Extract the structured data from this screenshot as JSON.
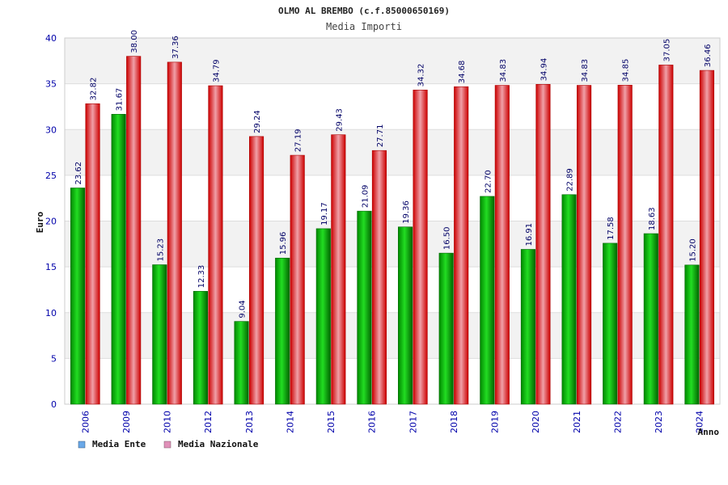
{
  "chart_data": {
    "type": "bar",
    "title": "OLMO AL BREMBO (c.f.85000650169)",
    "subtitle": "Media Importi",
    "ylabel": "Euro",
    "xlabel": "Anno",
    "ylim": [
      0,
      40
    ],
    "yticks": [
      0,
      5,
      10,
      15,
      20,
      25,
      30,
      35,
      40
    ],
    "grid": true,
    "legend_position": "bottom-left",
    "categories": [
      "2006",
      "2009",
      "2010",
      "2012",
      "2013",
      "2014",
      "2015",
      "2016",
      "2017",
      "2018",
      "2019",
      "2020",
      "2021",
      "2022",
      "2023",
      "2024"
    ],
    "series": [
      {
        "name": "Media Ente",
        "color": "#00bb00",
        "legend_color": "#6aa8e8",
        "values": [
          23.62,
          31.67,
          15.23,
          12.33,
          9.04,
          15.96,
          19.17,
          21.09,
          19.36,
          16.5,
          22.7,
          16.91,
          22.89,
          17.58,
          18.63,
          15.2
        ],
        "labels": [
          "23.62",
          "31.67",
          "15.23",
          "12.33",
          "9.04",
          "15.96",
          "19.17",
          "21.09",
          "19.36",
          "16.50",
          "22.70",
          "16.91",
          "22.89",
          "17.58",
          "18.63",
          "15.20"
        ]
      },
      {
        "name": "Media Nazionale",
        "color": "#ee1111",
        "legend_color": "#e090b8",
        "values": [
          32.82,
          38.0,
          37.36,
          34.79,
          29.24,
          27.19,
          29.43,
          27.71,
          34.32,
          34.68,
          34.83,
          34.94,
          34.83,
          34.85,
          37.05,
          36.46
        ],
        "labels": [
          "32.82",
          "38.00",
          "37.36",
          "34.79",
          "29.24",
          "27.19",
          "29.43",
          "27.71",
          "34.32",
          "34.68",
          "34.83",
          "34.94",
          "34.83",
          "34.85",
          "37.05",
          "36.46"
        ]
      }
    ]
  }
}
